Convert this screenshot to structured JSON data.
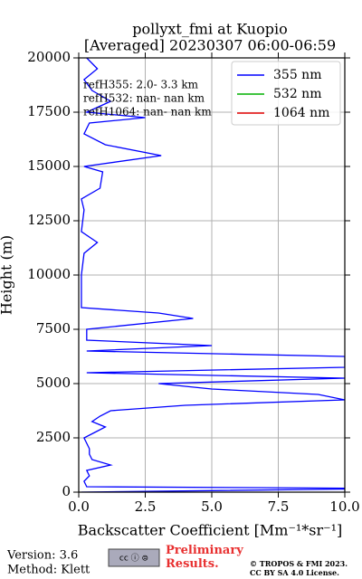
{
  "chart_data": {
    "type": "line",
    "title": "pollyxt_fmi at Kuopio",
    "subtitle": "[Averaged] 20230307 06:00-06:59",
    "x_label": "Backscatter Coefficient [Mm⁻¹*sr⁻¹]",
    "y_label": "Height (m)",
    "y": [
      0,
      170,
      250,
      500,
      750,
      1000,
      1250,
      1500,
      1750,
      2000,
      2250,
      2500,
      2750,
      3000,
      3250,
      3500,
      3750,
      4000,
      4250,
      4500,
      4750,
      5000,
      5250,
      5500,
      5750,
      6000,
      6250,
      6500,
      6750,
      7000,
      7500,
      8000,
      8250,
      8500,
      9000,
      10000,
      11000,
      11500,
      12000,
      13000,
      13500,
      14000,
      14750,
      15000,
      15500,
      16000,
      16500,
      17000,
      17250,
      17500,
      18000,
      18500,
      19000,
      19500,
      20000
    ],
    "series": [
      {
        "name": "355 nm",
        "color": "#0000ff",
        "values": [
          0.1,
          12,
          0.3,
          0.2,
          0.4,
          0.3,
          1.2,
          0.5,
          0.4,
          0.4,
          0.3,
          0.2,
          0.6,
          1.0,
          0.5,
          0.8,
          1.2,
          4.0,
          10,
          9,
          5,
          3,
          10,
          0.3,
          10,
          10,
          10,
          0.3,
          5,
          0.3,
          0.3,
          4.3,
          3.0,
          0.1,
          0.1,
          0.1,
          0.2,
          0.7,
          0.1,
          0.2,
          0.1,
          0.8,
          0.9,
          0.2,
          3.1,
          1.0,
          0.2,
          0.4,
          2.5,
          0.3,
          1.2,
          0.5,
          0.2,
          0.7,
          0.3
        ]
      },
      {
        "name": "532 nm",
        "color": "#00b000",
        "values": [
          null,
          null,
          null,
          null,
          null,
          null,
          null,
          null,
          null,
          null,
          null,
          null,
          null,
          null,
          null,
          null,
          null,
          null,
          null,
          null,
          null,
          null,
          null,
          null,
          null,
          null,
          null,
          null,
          null,
          null,
          null,
          null,
          null,
          null,
          null,
          null,
          null,
          null,
          null,
          null,
          null,
          null,
          null,
          null,
          null,
          null,
          null,
          null,
          null,
          null,
          null,
          null,
          null,
          null,
          null
        ]
      },
      {
        "name": "1064 nm",
        "color": "#e00000",
        "values": [
          null,
          null,
          null,
          null,
          null,
          null,
          null,
          null,
          null,
          null,
          null,
          null,
          null,
          null,
          null,
          null,
          null,
          null,
          null,
          null,
          null,
          null,
          null,
          null,
          null,
          null,
          null,
          null,
          null,
          null,
          null,
          null,
          null,
          null,
          null,
          null,
          null,
          null,
          null,
          null,
          null,
          null,
          null,
          null,
          null,
          null,
          null,
          null,
          null,
          null,
          null,
          null,
          null,
          null,
          null
        ]
      }
    ],
    "xlim": [
      0,
      10
    ],
    "xticks": [
      {
        "value": 0,
        "label": "0.0"
      },
      2.5,
      {
        "value": 5,
        "label": "5.0"
      },
      7.5,
      {
        "value": 10,
        "label": "10.0"
      }
    ],
    "ylim": [
      0,
      20000
    ],
    "yticks": [
      0,
      2500,
      5000,
      7500,
      10000,
      12500,
      15000,
      17500,
      20000
    ],
    "grid": true,
    "legend": "upper right",
    "annotations": [
      "refH355:  2.0- 3.3 km",
      "refH532:  nan- nan km",
      "refH1064:  nan- nan km"
    ],
    "footer": {
      "version": "Version: 3.6",
      "method": "Method: Klett",
      "status": "Preliminary Results.",
      "copyright": "© TROPOS & FMI 2023.",
      "license": "CC BY SA 4.0 License."
    }
  }
}
